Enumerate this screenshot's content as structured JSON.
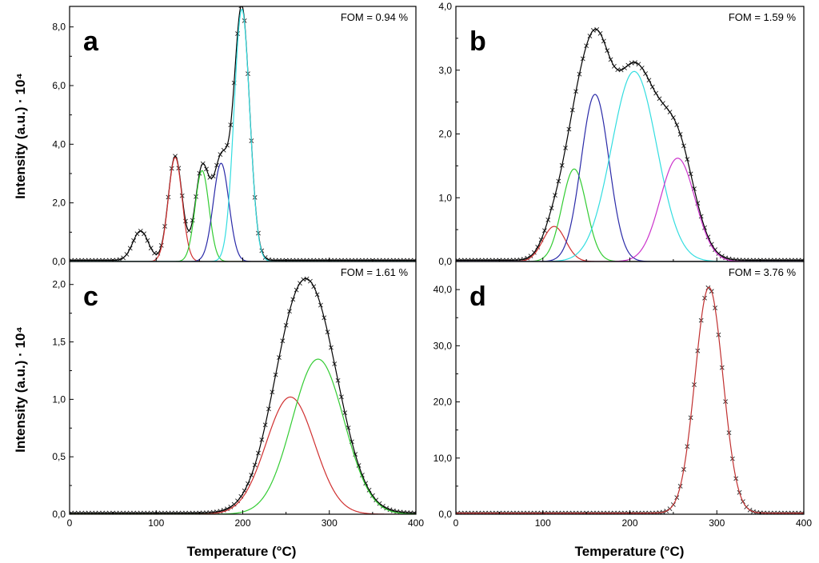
{
  "figure": {
    "ylabel_top": "Intensity (a.u.) · 10⁴",
    "ylabel_bottom": "Intensity (a.u.) · 10⁴",
    "xlabel_left": "Temperature (°C)",
    "xlabel_right": "Temperature (°C)"
  },
  "chart_data": [
    {
      "panel": "a",
      "type": "line",
      "fom": "FOM = 0.94 %",
      "xlim": [
        0,
        400
      ],
      "ylim": [
        0,
        8.7
      ],
      "xticks": [
        0,
        100,
        200,
        300,
        400
      ],
      "xtick_labels": [
        "0",
        "100",
        "200",
        "300",
        "400"
      ],
      "yticks": [
        0,
        2,
        4,
        6,
        8
      ],
      "ytick_labels": [
        "0,0",
        "2,0",
        "4,0",
        "6,0",
        "8,0"
      ],
      "grid": false,
      "series": [
        {
          "color": "#222222",
          "style": "markers-x",
          "peaks": [
            [
              82,
              1.0,
              9
            ],
            [
              122,
              3.55,
              8
            ],
            [
              153,
              3.1,
              8
            ],
            [
              175,
              3.35,
              9
            ],
            [
              199,
              8.6,
              9
            ]
          ],
          "baseline": 0.04
        },
        {
          "color": "#000000",
          "style": "line",
          "peaks": [
            [
              82,
              1.0,
              9
            ],
            [
              122,
              3.55,
              8
            ],
            [
              153,
              3.1,
              8
            ],
            [
              175,
              3.35,
              9
            ],
            [
              199,
              8.6,
              9
            ]
          ],
          "baseline": 0.04
        },
        {
          "color": "#d03030",
          "style": "line",
          "peaks": [
            [
              122,
              3.55,
              8
            ]
          ]
        },
        {
          "color": "#33cc33",
          "style": "line",
          "peaks": [
            [
              153,
              3.1,
              8
            ]
          ]
        },
        {
          "color": "#2a2aa8",
          "style": "line",
          "peaks": [
            [
              175,
              3.35,
              9
            ]
          ]
        },
        {
          "color": "#33dde0",
          "style": "line",
          "peaks": [
            [
              199,
              8.6,
              9
            ]
          ]
        }
      ]
    },
    {
      "panel": "b",
      "type": "line",
      "fom": "FOM = 1.59 %",
      "xlim": [
        0,
        400
      ],
      "ylim": [
        0,
        4.0
      ],
      "xticks": [
        0,
        100,
        200,
        300,
        400
      ],
      "xtick_labels": [
        "0",
        "100",
        "200",
        "300",
        "400"
      ],
      "yticks": [
        0,
        1,
        2,
        3,
        4
      ],
      "ytick_labels": [
        "0,0",
        "1,0",
        "2,0",
        "3,0",
        "4,0"
      ],
      "grid": false,
      "series": [
        {
          "color": "#222222",
          "style": "markers-x",
          "peaks": [
            [
              113,
              0.55,
              13
            ],
            [
              136,
              1.45,
              14
            ],
            [
              160,
              2.62,
              16
            ],
            [
              205,
              2.98,
              26
            ],
            [
              255,
              1.62,
              20
            ]
          ],
          "baseline": 0.02
        },
        {
          "color": "#000000",
          "style": "line",
          "peaks": [
            [
              113,
              0.55,
              13
            ],
            [
              136,
              1.45,
              14
            ],
            [
              160,
              2.62,
              16
            ],
            [
              205,
              2.98,
              26
            ],
            [
              255,
              1.62,
              20
            ]
          ],
          "baseline": 0.02
        },
        {
          "color": "#d03030",
          "style": "line",
          "peaks": [
            [
              113,
              0.55,
              13
            ]
          ]
        },
        {
          "color": "#33cc33",
          "style": "line",
          "peaks": [
            [
              136,
              1.45,
              14
            ]
          ]
        },
        {
          "color": "#2a2aa8",
          "style": "line",
          "peaks": [
            [
              160,
              2.62,
              16
            ]
          ]
        },
        {
          "color": "#33dde0",
          "style": "line",
          "peaks": [
            [
              205,
              2.98,
              26
            ]
          ]
        },
        {
          "color": "#cc33cc",
          "style": "line",
          "peaks": [
            [
              255,
              1.62,
              20
            ]
          ]
        }
      ]
    },
    {
      "panel": "c",
      "type": "line",
      "fom": "FOM = 1.61 %",
      "xlim": [
        0,
        400
      ],
      "ylim": [
        0,
        2.2
      ],
      "xticks": [
        0,
        100,
        200,
        300,
        400
      ],
      "xtick_labels": [
        "0",
        "100",
        "200",
        "300",
        "400"
      ],
      "yticks": [
        0,
        0.5,
        1.0,
        1.5,
        2.0
      ],
      "ytick_labels": [
        "0,0",
        "0,5",
        "1,0",
        "1,5",
        "2,0"
      ],
      "grid": false,
      "series": [
        {
          "color": "#222222",
          "style": "markers-x",
          "peaks": [
            [
              255,
              1.02,
              28
            ],
            [
              287,
              1.35,
              30
            ]
          ],
          "baseline": 0.01
        },
        {
          "color": "#000000",
          "style": "line",
          "peaks": [
            [
              255,
              1.02,
              28
            ],
            [
              287,
              1.35,
              30
            ]
          ],
          "baseline": 0.01
        },
        {
          "color": "#d03030",
          "style": "line",
          "peaks": [
            [
              255,
              1.02,
              28
            ]
          ]
        },
        {
          "color": "#33cc33",
          "style": "line",
          "peaks": [
            [
              287,
              1.35,
              30
            ]
          ]
        }
      ]
    },
    {
      "panel": "d",
      "type": "line",
      "fom": "FOM = 3.76 %",
      "xlim": [
        0,
        400
      ],
      "ylim": [
        0,
        45
      ],
      "xticks": [
        0,
        100,
        200,
        300,
        400
      ],
      "xtick_labels": [
        "0",
        "100",
        "200",
        "300",
        "400"
      ],
      "yticks": [
        0,
        10,
        20,
        30,
        40
      ],
      "ytick_labels": [
        "0,0",
        "10,0",
        "20,0",
        "30,0",
        "40,0"
      ],
      "grid": false,
      "series": [
        {
          "color": "#222222",
          "style": "markers-x",
          "peaks": [
            [
              291,
              40.2,
              16
            ]
          ],
          "baseline": 0.2
        },
        {
          "color": "#c03030",
          "style": "line",
          "peaks": [
            [
              291,
              40.2,
              16
            ]
          ],
          "baseline": 0.2
        }
      ]
    }
  ]
}
